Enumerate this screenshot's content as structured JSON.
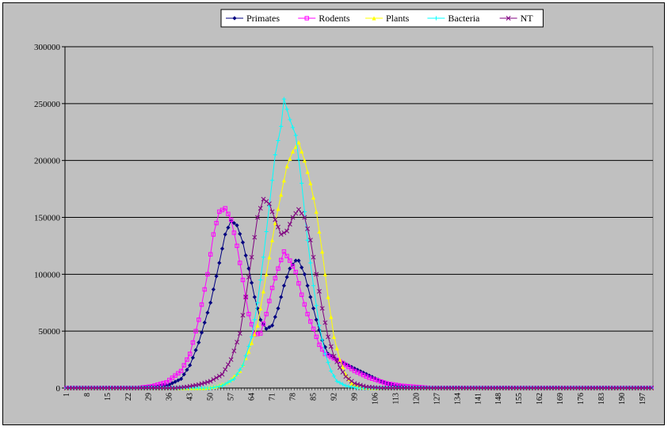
{
  "chart_data": {
    "type": "line",
    "title": "",
    "xlabel": "",
    "ylabel": "",
    "x_start": 1,
    "x_end": 200,
    "x_tick_step": 7,
    "x_tick_labels": [
      "1",
      "8",
      "15",
      "22",
      "29",
      "36",
      "43",
      "50",
      "57",
      "64",
      "71",
      "78",
      "85",
      "92",
      "99",
      "106",
      "113",
      "120",
      "127",
      "134",
      "141",
      "148",
      "155",
      "162",
      "169",
      "176",
      "183",
      "190",
      "197"
    ],
    "ylim": [
      0,
      300000
    ],
    "y_tick_labels": [
      "0",
      "50000",
      "100000",
      "150000",
      "200000",
      "250000",
      "300000"
    ],
    "grid": "horizontal",
    "legend_position": "top-center",
    "series_note": "Values read from curve peaks; each series is an approximately 200-point distribution, zero outside listed anchors.",
    "series": [
      {
        "name": "Primates",
        "color": "#000080",
        "marker": "diamond",
        "anchors": [
          [
            1,
            0
          ],
          [
            25,
            0
          ],
          [
            30,
            1000
          ],
          [
            36,
            3000
          ],
          [
            40,
            8000
          ],
          [
            43,
            20000
          ],
          [
            46,
            40000
          ],
          [
            50,
            75000
          ],
          [
            53,
            110000
          ],
          [
            55,
            135000
          ],
          [
            57,
            147000
          ],
          [
            59,
            143000
          ],
          [
            61,
            128000
          ],
          [
            63,
            105000
          ],
          [
            65,
            80000
          ],
          [
            67,
            60000
          ],
          [
            69,
            52000
          ],
          [
            71,
            55000
          ],
          [
            73,
            70000
          ],
          [
            75,
            90000
          ],
          [
            77,
            105000
          ],
          [
            79,
            112000
          ],
          [
            80,
            112000
          ],
          [
            82,
            100000
          ],
          [
            84,
            80000
          ],
          [
            86,
            60000
          ],
          [
            88,
            42000
          ],
          [
            90,
            30000
          ],
          [
            93,
            25000
          ],
          [
            96,
            21000
          ],
          [
            100,
            16000
          ],
          [
            104,
            11000
          ],
          [
            108,
            6000
          ],
          [
            113,
            2000
          ],
          [
            118,
            500
          ],
          [
            125,
            0
          ],
          [
            200,
            0
          ]
        ]
      },
      {
        "name": "Rodents",
        "color": "#ff00ff",
        "marker": "square",
        "anchors": [
          [
            1,
            0
          ],
          [
            25,
            0
          ],
          [
            30,
            1500
          ],
          [
            35,
            5000
          ],
          [
            40,
            15000
          ],
          [
            43,
            30000
          ],
          [
            46,
            60000
          ],
          [
            49,
            100000
          ],
          [
            51,
            135000
          ],
          [
            53,
            155000
          ],
          [
            55,
            158000
          ],
          [
            57,
            148000
          ],
          [
            59,
            125000
          ],
          [
            61,
            95000
          ],
          [
            63,
            65000
          ],
          [
            65,
            47000
          ],
          [
            67,
            48000
          ],
          [
            69,
            65000
          ],
          [
            71,
            88000
          ],
          [
            73,
            105000
          ],
          [
            75,
            120000
          ],
          [
            77,
            112000
          ],
          [
            79,
            102000
          ],
          [
            81,
            82000
          ],
          [
            83,
            65000
          ],
          [
            85,
            52000
          ],
          [
            87,
            38000
          ],
          [
            89,
            30000
          ],
          [
            92,
            26000
          ],
          [
            95,
            22000
          ],
          [
            99,
            15000
          ],
          [
            104,
            9000
          ],
          [
            110,
            4000
          ],
          [
            115,
            2000
          ],
          [
            120,
            1000
          ],
          [
            125,
            0
          ],
          [
            200,
            0
          ]
        ]
      },
      {
        "name": "Plants",
        "color": "#ffff00",
        "marker": "triangle",
        "anchors": [
          [
            1,
            0
          ],
          [
            48,
            0
          ],
          [
            52,
            1500
          ],
          [
            56,
            5000
          ],
          [
            60,
            15000
          ],
          [
            63,
            32000
          ],
          [
            66,
            55000
          ],
          [
            68,
            85000
          ],
          [
            70,
            115000
          ],
          [
            72,
            145000
          ],
          [
            74,
            170000
          ],
          [
            76,
            195000
          ],
          [
            78,
            208000
          ],
          [
            80,
            216000
          ],
          [
            82,
            200000
          ],
          [
            84,
            180000
          ],
          [
            86,
            155000
          ],
          [
            88,
            120000
          ],
          [
            90,
            80000
          ],
          [
            92,
            45000
          ],
          [
            94,
            25000
          ],
          [
            96,
            12000
          ],
          [
            98,
            4000
          ],
          [
            101,
            1000
          ],
          [
            105,
            0
          ],
          [
            200,
            0
          ]
        ]
      },
      {
        "name": "Bacteria",
        "color": "#00ffff",
        "marker": "cross",
        "anchors": [
          [
            1,
            0
          ],
          [
            50,
            0
          ],
          [
            54,
            2000
          ],
          [
            58,
            8000
          ],
          [
            61,
            20000
          ],
          [
            64,
            45000
          ],
          [
            66,
            75000
          ],
          [
            68,
            115000
          ],
          [
            70,
            160000
          ],
          [
            72,
            205000
          ],
          [
            74,
            230000
          ],
          [
            75,
            254000
          ],
          [
            77,
            236000
          ],
          [
            79,
            222000
          ],
          [
            81,
            180000
          ],
          [
            83,
            130000
          ],
          [
            85,
            90000
          ],
          [
            87,
            55000
          ],
          [
            89,
            30000
          ],
          [
            91,
            15000
          ],
          [
            93,
            6000
          ],
          [
            96,
            2000
          ],
          [
            100,
            0
          ],
          [
            200,
            0
          ]
        ]
      },
      {
        "name": "NT",
        "color": "#800080",
        "marker": "x",
        "anchors": [
          [
            1,
            0
          ],
          [
            38,
            0
          ],
          [
            42,
            1000
          ],
          [
            46,
            3000
          ],
          [
            50,
            6000
          ],
          [
            54,
            12000
          ],
          [
            57,
            25000
          ],
          [
            60,
            48000
          ],
          [
            62,
            80000
          ],
          [
            64,
            115000
          ],
          [
            66,
            150000
          ],
          [
            68,
            166000
          ],
          [
            70,
            162000
          ],
          [
            72,
            148000
          ],
          [
            74,
            135000
          ],
          [
            76,
            138000
          ],
          [
            78,
            150000
          ],
          [
            80,
            157000
          ],
          [
            82,
            150000
          ],
          [
            84,
            130000
          ],
          [
            86,
            100000
          ],
          [
            88,
            70000
          ],
          [
            90,
            45000
          ],
          [
            92,
            28000
          ],
          [
            94,
            18000
          ],
          [
            96,
            10000
          ],
          [
            99,
            4000
          ],
          [
            103,
            1000
          ],
          [
            108,
            0
          ],
          [
            200,
            0
          ]
        ]
      }
    ]
  }
}
